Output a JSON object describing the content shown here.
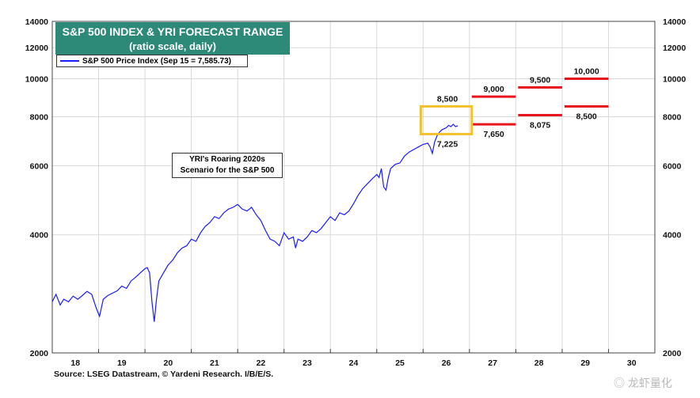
{
  "title": "S&P 500 INDEX & YRI FORECAST RANGE",
  "subtitle": "(ratio scale, daily)",
  "legend_label": "S&P 500 Price Index (Sep 15 = 7,585.73)",
  "scenario_lines": [
    "YRI's Roaring 2020s",
    "Scenario for the S&P 500"
  ],
  "source": "Source: LSEG Datastream, © Yardeni Research. I/B/E/S.",
  "watermark": "◎ 龙虾量化",
  "colors": {
    "series": "#1a1aff",
    "forecast": "#e8141b",
    "highlight": "#f2c12e",
    "title_bg": "#2e8a78",
    "grid": "#d9d9d9"
  },
  "chart_data": {
    "type": "line",
    "scale": "log",
    "ylim": [
      2000,
      14000
    ],
    "xlim": [
      17.5,
      30.5
    ],
    "yticks": [
      2000,
      4000,
      6000,
      8000,
      10000,
      12000,
      14000
    ],
    "ytick_labels": [
      "2000",
      "4000",
      "6000",
      "8000",
      "10000",
      "12000",
      "14000"
    ],
    "xticks": [
      18,
      19,
      20,
      21,
      22,
      23,
      24,
      25,
      26,
      27,
      28,
      29,
      30
    ],
    "xtick_labels": [
      "18",
      "19",
      "20",
      "21",
      "22",
      "23",
      "24",
      "25",
      "26",
      "27",
      "28",
      "29",
      "30"
    ],
    "grid": true,
    "series": [
      {
        "name": "S&P 500 Price Index (Sep 15 = 7,585.73)",
        "x": [
          17.5,
          17.58,
          17.67,
          17.75,
          17.85,
          17.95,
          18.05,
          18.15,
          18.25,
          18.35,
          18.45,
          18.52,
          18.6,
          18.7,
          18.8,
          18.9,
          19.0,
          19.1,
          19.2,
          19.3,
          19.4,
          19.5,
          19.55,
          19.6,
          19.65,
          19.7,
          19.75,
          19.8,
          19.9,
          20.0,
          20.1,
          20.2,
          20.3,
          20.4,
          20.5,
          20.6,
          20.7,
          20.8,
          20.9,
          21.0,
          21.1,
          21.2,
          21.3,
          21.4,
          21.5,
          21.6,
          21.7,
          21.8,
          21.9,
          22.0,
          22.1,
          22.2,
          22.3,
          22.4,
          22.5,
          22.6,
          22.7,
          22.75,
          22.8,
          22.9,
          23.0,
          23.1,
          23.2,
          23.3,
          23.4,
          23.5,
          23.6,
          23.7,
          23.8,
          23.9,
          24.0,
          24.1,
          24.2,
          24.3,
          24.4,
          24.5,
          24.55,
          24.6,
          24.65,
          24.7,
          24.75,
          24.8,
          24.9,
          25.0,
          25.1,
          25.2,
          25.3,
          25.4,
          25.5,
          25.6,
          25.65,
          25.7,
          25.75,
          25.8,
          25.85,
          25.9,
          25.95,
          26.0,
          26.05,
          26.1,
          26.15,
          26.2,
          26.25
        ],
        "values": [
          2700,
          2820,
          2650,
          2740,
          2700,
          2790,
          2740,
          2800,
          2870,
          2820,
          2600,
          2480,
          2740,
          2800,
          2840,
          2880,
          2960,
          2920,
          3050,
          3120,
          3200,
          3280,
          3300,
          3200,
          2700,
          2400,
          2750,
          3050,
          3200,
          3350,
          3450,
          3600,
          3700,
          3750,
          3900,
          3850,
          4050,
          4200,
          4300,
          4450,
          4400,
          4550,
          4650,
          4700,
          4780,
          4650,
          4600,
          4700,
          4500,
          4350,
          4100,
          3900,
          3850,
          3750,
          4050,
          3900,
          3950,
          3700,
          3900,
          3850,
          3950,
          4100,
          4050,
          4150,
          4300,
          4450,
          4350,
          4550,
          4500,
          4600,
          4800,
          5050,
          5250,
          5400,
          5550,
          5700,
          5600,
          5900,
          5300,
          5200,
          5600,
          5900,
          6050,
          6100,
          6350,
          6500,
          6600,
          6700,
          6800,
          6850,
          6700,
          6450,
          6900,
          7150,
          7300,
          7400,
          7450,
          7500,
          7600,
          7550,
          7650,
          7550,
          7585.73
        ]
      }
    ],
    "forecast_ranges": [
      {
        "x_start": 25.55,
        "x_end": 26.5,
        "high": 8500,
        "low": 7225,
        "high_label": "8,500",
        "low_label": "7,225"
      },
      {
        "x_start": 26.55,
        "x_end": 27.5,
        "high": 9000,
        "low": 7650,
        "high_label": "9,000",
        "low_label": "7,650"
      },
      {
        "x_start": 27.55,
        "x_end": 28.5,
        "high": 9500,
        "low": 8075,
        "high_label": "9,500",
        "low_label": "8,075"
      },
      {
        "x_start": 28.55,
        "x_end": 29.5,
        "high": 10000,
        "low": 8500,
        "high_label": "10,000",
        "low_label": "8,500"
      }
    ],
    "highlight_range": {
      "x_start": 25.45,
      "x_end": 26.55,
      "high": 8500,
      "low": 7225
    }
  }
}
